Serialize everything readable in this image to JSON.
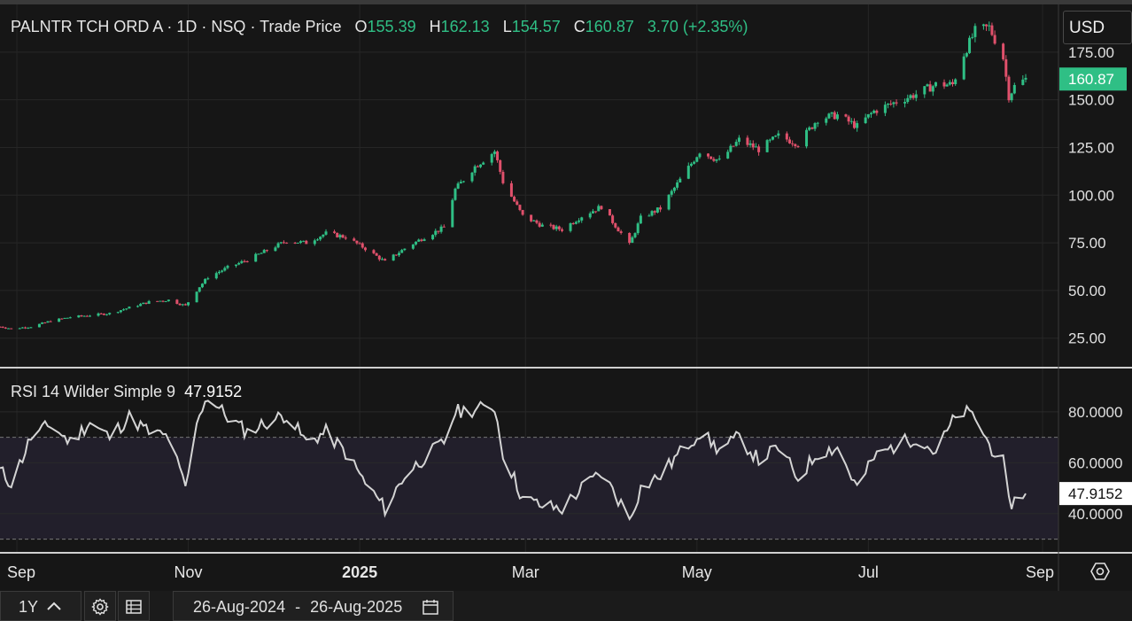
{
  "header": {
    "instrument": "PALNTR TCH ORD A",
    "interval": "1D",
    "exchange": "NSQ",
    "price_type": "Trade Price",
    "open_label": "O",
    "open": "155.39",
    "high_label": "H",
    "high": "162.13",
    "low_label": "L",
    "low": "154.57",
    "close_label": "C",
    "close": "160.87",
    "change": "3.70 (+2.35%)"
  },
  "currency": "USD",
  "rsi_panel": {
    "label": "RSI 14 Wilder Simple 9",
    "value": "47.9152"
  },
  "footer": {
    "range_label": "1Y",
    "date_from": "26-Aug-2024",
    "date_sep": "-",
    "date_to": "26-Aug-2025"
  },
  "colors": {
    "up": "#2fbf85",
    "down": "#e0506b",
    "rsi_line": "#d4d4d4",
    "background": "#161616"
  },
  "icons": [
    "chevron-up-icon",
    "gear-icon",
    "table-icon",
    "calendar-icon",
    "settings-hexagon-icon"
  ],
  "chart_data": [
    {
      "type": "candlestick",
      "ylim": [
        10,
        200
      ],
      "y_ticks": [
        "175.00",
        "150.00",
        "125.00",
        "100.00",
        "75.00",
        "50.00",
        "25.00"
      ],
      "x_ticks": [
        "Sep",
        "Nov",
        "2025",
        "Mar",
        "May",
        "Jul",
        "Sep"
      ],
      "last_price": "160.87",
      "close_series": [
        [
          "2024-08-26",
          31
        ],
        [
          "2024-08-30",
          30
        ],
        [
          "2024-09-06",
          31
        ],
        [
          "2024-09-13",
          34
        ],
        [
          "2024-09-20",
          36
        ],
        [
          "2024-09-27",
          37
        ],
        [
          "2024-10-04",
          38
        ],
        [
          "2024-10-11",
          41
        ],
        [
          "2024-10-18",
          44
        ],
        [
          "2024-10-25",
          45
        ],
        [
          "2024-10-31",
          42
        ],
        [
          "2024-11-05",
          52
        ],
        [
          "2024-11-08",
          57
        ],
        [
          "2024-11-15",
          62
        ],
        [
          "2024-11-22",
          66
        ],
        [
          "2024-11-29",
          71
        ],
        [
          "2024-12-06",
          76
        ],
        [
          "2024-12-13",
          75
        ],
        [
          "2024-12-20",
          80
        ],
        [
          "2024-12-27",
          78
        ],
        [
          "2025-01-03",
          72
        ],
        [
          "2025-01-10",
          65
        ],
        [
          "2025-01-17",
          72
        ],
        [
          "2025-01-24",
          78
        ],
        [
          "2025-01-31",
          83
        ],
        [
          "2025-02-04",
          103
        ],
        [
          "2025-02-11",
          115
        ],
        [
          "2025-02-18",
          123
        ],
        [
          "2025-02-21",
          107
        ],
        [
          "2025-02-28",
          89
        ],
        [
          "2025-03-07",
          84
        ],
        [
          "2025-03-14",
          82
        ],
        [
          "2025-03-21",
          89
        ],
        [
          "2025-03-28",
          94
        ],
        [
          "2025-04-04",
          80
        ],
        [
          "2025-04-07",
          74
        ],
        [
          "2025-04-11",
          88
        ],
        [
          "2025-04-18",
          93
        ],
        [
          "2025-04-25",
          108
        ],
        [
          "2025-05-02",
          123
        ],
        [
          "2025-05-09",
          118
        ],
        [
          "2025-05-16",
          129
        ],
        [
          "2025-05-23",
          124
        ],
        [
          "2025-05-30",
          131
        ],
        [
          "2025-06-06",
          127
        ],
        [
          "2025-06-13",
          140
        ],
        [
          "2025-06-20",
          142
        ],
        [
          "2025-06-27",
          136
        ],
        [
          "2025-07-03",
          144
        ],
        [
          "2025-07-11",
          149
        ],
        [
          "2025-07-18",
          153
        ],
        [
          "2025-07-25",
          158
        ],
        [
          "2025-07-31",
          158
        ],
        [
          "2025-08-04",
          174
        ],
        [
          "2025-08-08",
          186
        ],
        [
          "2025-08-13",
          188
        ],
        [
          "2025-08-18",
          172
        ],
        [
          "2025-08-20",
          152
        ],
        [
          "2025-08-22",
          157
        ],
        [
          "2025-08-26",
          160.87
        ]
      ]
    },
    {
      "type": "line",
      "name": "RSI 14 Wilder Simple 9",
      "ylim": [
        25,
        97
      ],
      "y_ticks": [
        "80.0000",
        "60.0000",
        "40.0000"
      ],
      "bands": [
        30,
        70
      ],
      "last_value": "47.9152",
      "series": [
        [
          "2024-08-26",
          57
        ],
        [
          "2024-08-30",
          52
        ],
        [
          "2024-09-03",
          62
        ],
        [
          "2024-09-06",
          70
        ],
        [
          "2024-09-13",
          75
        ],
        [
          "2024-09-20",
          68
        ],
        [
          "2024-09-27",
          76
        ],
        [
          "2024-10-04",
          70
        ],
        [
          "2024-10-11",
          78
        ],
        [
          "2024-10-18",
          72
        ],
        [
          "2024-10-25",
          70
        ],
        [
          "2024-10-31",
          50
        ],
        [
          "2024-11-05",
          80
        ],
        [
          "2024-11-08",
          86
        ],
        [
          "2024-11-15",
          78
        ],
        [
          "2024-11-22",
          72
        ],
        [
          "2024-11-29",
          76
        ],
        [
          "2024-12-06",
          79
        ],
        [
          "2024-12-13",
          68
        ],
        [
          "2024-12-20",
          72
        ],
        [
          "2024-12-27",
          64
        ],
        [
          "2025-01-03",
          52
        ],
        [
          "2025-01-10",
          42
        ],
        [
          "2025-01-17",
          55
        ],
        [
          "2025-01-24",
          62
        ],
        [
          "2025-01-31",
          68
        ],
        [
          "2025-02-04",
          80
        ],
        [
          "2025-02-11",
          81
        ],
        [
          "2025-02-18",
          82
        ],
        [
          "2025-02-21",
          64
        ],
        [
          "2025-02-28",
          46
        ],
        [
          "2025-03-07",
          43
        ],
        [
          "2025-03-14",
          42
        ],
        [
          "2025-03-21",
          50
        ],
        [
          "2025-03-28",
          56
        ],
        [
          "2025-04-04",
          44
        ],
        [
          "2025-04-07",
          38
        ],
        [
          "2025-04-11",
          50
        ],
        [
          "2025-04-18",
          55
        ],
        [
          "2025-04-25",
          64
        ],
        [
          "2025-05-02",
          72
        ],
        [
          "2025-05-09",
          65
        ],
        [
          "2025-05-16",
          70
        ],
        [
          "2025-05-23",
          61
        ],
        [
          "2025-05-30",
          66
        ],
        [
          "2025-06-06",
          54
        ],
        [
          "2025-06-13",
          64
        ],
        [
          "2025-06-20",
          66
        ],
        [
          "2025-06-27",
          50
        ],
        [
          "2025-07-03",
          62
        ],
        [
          "2025-07-11",
          67
        ],
        [
          "2025-07-18",
          70
        ],
        [
          "2025-07-25",
          64
        ],
        [
          "2025-07-31",
          76
        ],
        [
          "2025-08-04",
          80
        ],
        [
          "2025-08-08",
          78
        ],
        [
          "2025-08-13",
          67
        ],
        [
          "2025-08-18",
          60
        ],
        [
          "2025-08-20",
          44
        ],
        [
          "2025-08-22",
          45
        ],
        [
          "2025-08-26",
          47.9152
        ]
      ]
    }
  ]
}
